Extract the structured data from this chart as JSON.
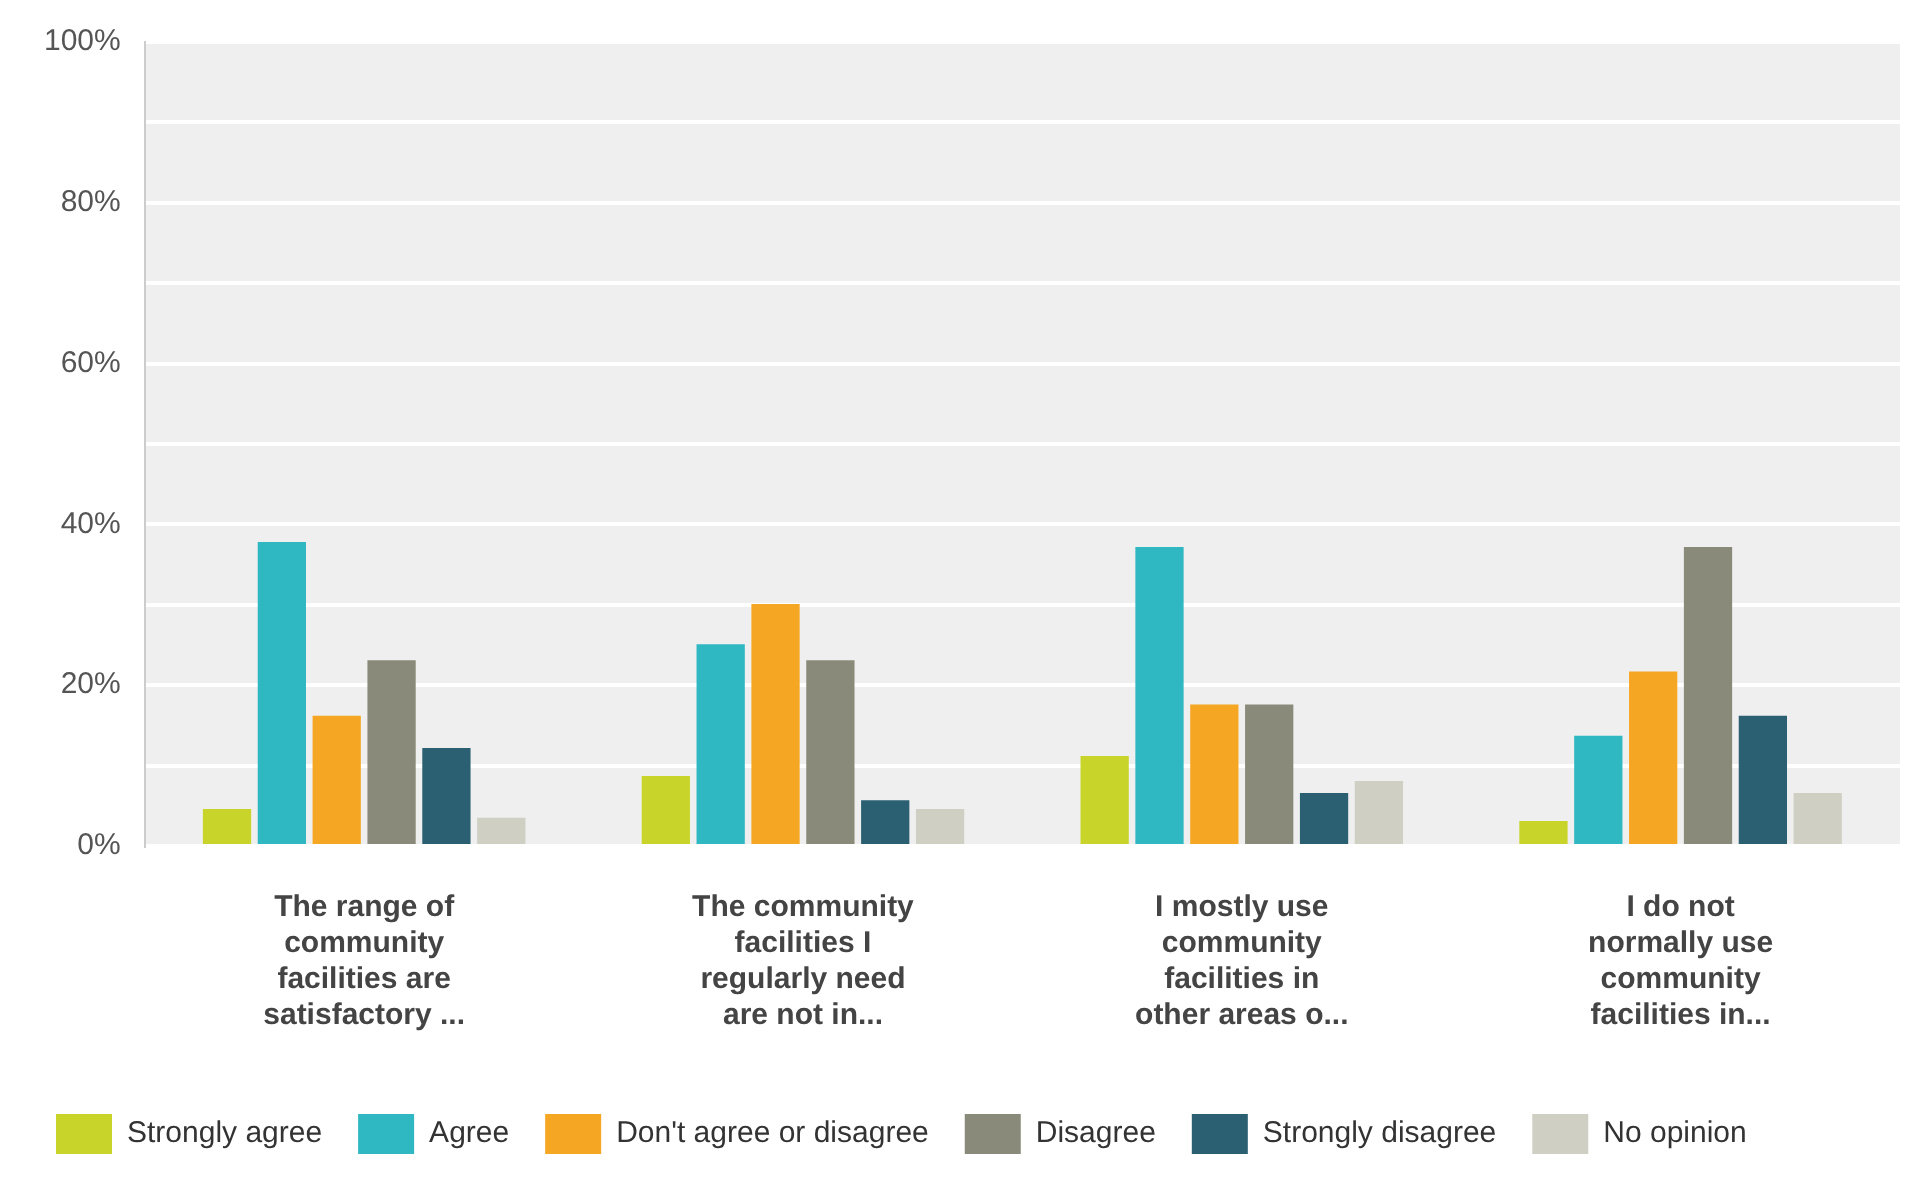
{
  "chart_data": {
    "type": "bar",
    "categories": [
      "The range of community facilities are satisfactory ...",
      "The community facilities I regularly need are not in...",
      "I mostly use community facilities in other areas o...",
      "I do not normally use community facilities in..."
    ],
    "series": [
      {
        "name": "Strongly agree",
        "color": "#c8d42a",
        "values": [
          4.6,
          8.7,
          11.2,
          3.1
        ]
      },
      {
        "name": "Agree",
        "color": "#2fb8c2",
        "values": [
          37.8,
          25.1,
          37.2,
          13.7
        ]
      },
      {
        "name": "Don't agree or disagree",
        "color": "#f5a623",
        "values": [
          16.2,
          30.1,
          17.6,
          21.7
        ]
      },
      {
        "name": "Disagree",
        "color": "#8a8a7a",
        "values": [
          23.1,
          23.1,
          17.6,
          37.2
        ]
      },
      {
        "name": "Strongly disagree",
        "color": "#2b5f72",
        "values": [
          12.2,
          5.7,
          6.6,
          16.2
        ]
      },
      {
        "name": "No opinion",
        "color": "#cfcfc4",
        "values": [
          3.5,
          4.6,
          8.1,
          6.6
        ]
      }
    ],
    "ylim": [
      0,
      100
    ],
    "yticks": [
      {
        "value": 0,
        "label": "0%"
      },
      {
        "value": 10,
        "label": null
      },
      {
        "value": 20,
        "label": "20%"
      },
      {
        "value": 30,
        "label": null
      },
      {
        "value": 40,
        "label": "40%"
      },
      {
        "value": 50,
        "label": null
      },
      {
        "value": 60,
        "label": "60%"
      },
      {
        "value": 70,
        "label": null
      },
      {
        "value": 80,
        "label": "80%"
      },
      {
        "value": 90,
        "label": null
      },
      {
        "value": 100,
        "label": "100%"
      }
    ],
    "grid": "y",
    "legend": "bottom"
  }
}
